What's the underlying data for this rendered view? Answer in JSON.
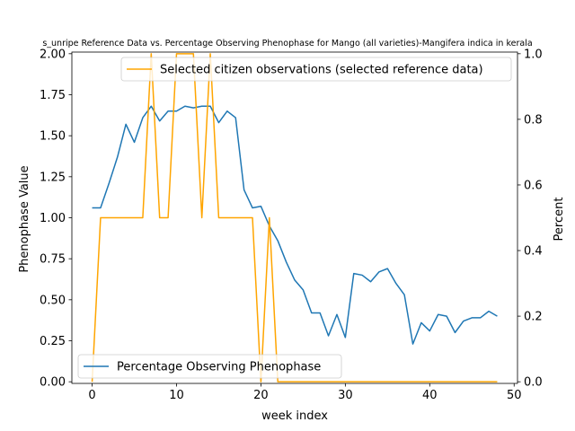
{
  "chart_data": {
    "type": "line",
    "title": "s_unripe Reference Data vs. Percentage Observing Phenophase for Mango (all varieties)-Mangifera indica in kerala",
    "xlabel": "week index",
    "ylabel_left": "Phenophase Value",
    "ylabel_right": "Percent",
    "xlim": [
      -2.4,
      50.4
    ],
    "ylim_left": [
      -0.01,
      2.01
    ],
    "ylim_right": [
      -0.005,
      1.005
    ],
    "x_ticks": [
      0,
      10,
      20,
      30,
      40,
      50
    ],
    "y_ticks_left": [
      "0.00",
      "0.25",
      "0.50",
      "0.75",
      "1.00",
      "1.25",
      "1.50",
      "1.75",
      "2.00"
    ],
    "y_ticks_right": [
      "0.0",
      "0.2",
      "0.4",
      "0.6",
      "0.8",
      "1.0"
    ],
    "series": [
      {
        "name": "Percentage Observing Phenophase",
        "axis": "left",
        "color": "#1f77b4",
        "x": [
          0,
          1,
          2,
          3,
          4,
          5,
          6,
          7,
          8,
          9,
          10,
          11,
          12,
          13,
          14,
          15,
          16,
          17,
          18,
          19,
          20,
          21,
          22,
          23,
          24,
          25,
          26,
          27,
          28,
          29,
          30,
          31,
          32,
          33,
          34,
          35,
          36,
          37,
          38,
          39,
          40,
          41,
          42,
          43,
          44,
          45,
          46,
          47,
          48
        ],
        "values": [
          1.06,
          1.06,
          1.21,
          1.37,
          1.57,
          1.46,
          1.61,
          1.68,
          1.59,
          1.65,
          1.65,
          1.68,
          1.67,
          1.68,
          1.68,
          1.58,
          1.65,
          1.61,
          1.17,
          1.06,
          1.07,
          0.95,
          0.86,
          0.73,
          0.62,
          0.56,
          0.42,
          0.42,
          0.28,
          0.41,
          0.27,
          0.66,
          0.65,
          0.61,
          0.67,
          0.69,
          0.6,
          0.53,
          0.23,
          0.36,
          0.31,
          0.41,
          0.4,
          0.3,
          0.37,
          0.39,
          0.39,
          0.43,
          0.4
        ]
      },
      {
        "name": "Selected citizen observations (selected reference data)",
        "axis": "right",
        "color": "#ffa500",
        "x": [
          0,
          1,
          2,
          3,
          4,
          5,
          6,
          7,
          8,
          9,
          10,
          11,
          12,
          13,
          14,
          15,
          16,
          17,
          18,
          19,
          20,
          21,
          22,
          23,
          24,
          25,
          26,
          27,
          28,
          29,
          30,
          31,
          32,
          33,
          34,
          35,
          36,
          37,
          38,
          39,
          40,
          41,
          42,
          43,
          44,
          45,
          46,
          47,
          48
        ],
        "values": [
          0,
          0.5,
          0.5,
          0.5,
          0.5,
          0.5,
          0.5,
          1,
          0.5,
          0.5,
          1,
          1,
          1,
          0.5,
          1,
          0.5,
          0.5,
          0.5,
          0.5,
          0.5,
          0,
          0.5,
          0,
          0,
          0,
          0,
          0,
          0,
          0,
          0,
          0,
          0,
          0,
          0,
          0,
          0,
          0,
          0,
          0,
          0,
          0,
          0,
          0,
          0,
          0,
          0,
          0,
          0,
          0
        ]
      }
    ],
    "legend": [
      {
        "label": "Selected citizen observations (selected reference data)",
        "position": "upper-right"
      },
      {
        "label": "Percentage Observing Phenophase",
        "position": "lower-left"
      }
    ]
  }
}
